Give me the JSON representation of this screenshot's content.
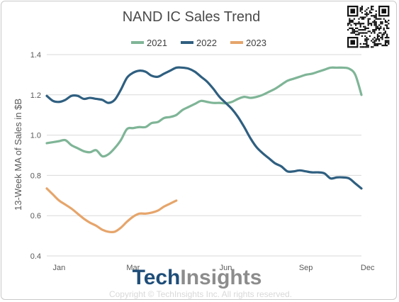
{
  "chart_data": {
    "type": "line",
    "title": "NAND IC Sales Trend",
    "ylabel": "13-Week MA of Sales in $B",
    "xlabel": "",
    "ylim": [
      0.4,
      1.4
    ],
    "yticks": [
      "0.4",
      "0.6",
      "0.8",
      "1.0",
      "1.2",
      "1.4"
    ],
    "xlim": [
      1,
      52
    ],
    "xticks": [
      {
        "label": "Jan",
        "week": 3
      },
      {
        "label": "Mar",
        "week": 15
      },
      {
        "label": "Jun",
        "week": 30
      },
      {
        "label": "Sep",
        "week": 43
      },
      {
        "label": "Dec",
        "week": 53
      }
    ],
    "legend_position": "top",
    "grid": true,
    "series": [
      {
        "name": "2021",
        "color": "#7fb597",
        "weeks": [
          1,
          2,
          3,
          4,
          5,
          6,
          7,
          8,
          9,
          10,
          11,
          12,
          13,
          14,
          15,
          16,
          17,
          18,
          19,
          20,
          21,
          22,
          23,
          24,
          25,
          26,
          27,
          28,
          29,
          30,
          31,
          32,
          33,
          34,
          35,
          36,
          37,
          38,
          39,
          40,
          41,
          42,
          43,
          44,
          45,
          46,
          47,
          48,
          49,
          50,
          51,
          52
        ],
        "values": [
          0.96,
          0.965,
          0.97,
          0.975,
          0.95,
          0.935,
          0.92,
          0.915,
          0.925,
          0.895,
          0.905,
          0.935,
          0.975,
          1.03,
          1.035,
          1.04,
          1.04,
          1.06,
          1.065,
          1.085,
          1.09,
          1.1,
          1.125,
          1.14,
          1.155,
          1.17,
          1.165,
          1.16,
          1.16,
          1.158,
          1.165,
          1.18,
          1.19,
          1.185,
          1.19,
          1.2,
          1.215,
          1.23,
          1.25,
          1.27,
          1.28,
          1.29,
          1.3,
          1.305,
          1.315,
          1.325,
          1.335,
          1.335,
          1.335,
          1.33,
          1.3,
          1.2
        ]
      },
      {
        "name": "2022",
        "color": "#2f5f80",
        "weeks": [
          1,
          2,
          3,
          4,
          5,
          6,
          7,
          8,
          9,
          10,
          11,
          12,
          13,
          14,
          15,
          16,
          17,
          18,
          19,
          20,
          21,
          22,
          23,
          24,
          25,
          26,
          27,
          28,
          29,
          30,
          31,
          32,
          33,
          34,
          35,
          36,
          37,
          38,
          39,
          40,
          41,
          42,
          43,
          44,
          45,
          46,
          47,
          48,
          49,
          50,
          51,
          52
        ],
        "values": [
          1.195,
          1.17,
          1.165,
          1.175,
          1.195,
          1.195,
          1.18,
          1.185,
          1.18,
          1.175,
          1.16,
          1.175,
          1.225,
          1.285,
          1.31,
          1.32,
          1.315,
          1.295,
          1.29,
          1.305,
          1.32,
          1.335,
          1.335,
          1.33,
          1.315,
          1.29,
          1.265,
          1.23,
          1.19,
          1.16,
          1.13,
          1.09,
          1.04,
          0.985,
          0.94,
          0.91,
          0.885,
          0.86,
          0.845,
          0.82,
          0.82,
          0.825,
          0.82,
          0.815,
          0.815,
          0.81,
          0.785,
          0.79,
          0.79,
          0.785,
          0.76,
          0.735
        ]
      },
      {
        "name": "2023",
        "color": "#e6a56b",
        "weeks": [
          1,
          2,
          3,
          4,
          5,
          6,
          7,
          8,
          9,
          10,
          11,
          12,
          13,
          14,
          15,
          16,
          17,
          18,
          19,
          20,
          21,
          22
        ],
        "values": [
          0.735,
          0.705,
          0.675,
          0.655,
          0.635,
          0.61,
          0.585,
          0.565,
          0.55,
          0.53,
          0.52,
          0.52,
          0.54,
          0.57,
          0.595,
          0.61,
          0.61,
          0.615,
          0.625,
          0.645,
          0.66,
          0.675
        ]
      }
    ]
  },
  "brand": {
    "part1": "Tech",
    "part2": "Insights",
    "copyright": "Copyright © TechInsights Inc.  All rights reserved."
  }
}
